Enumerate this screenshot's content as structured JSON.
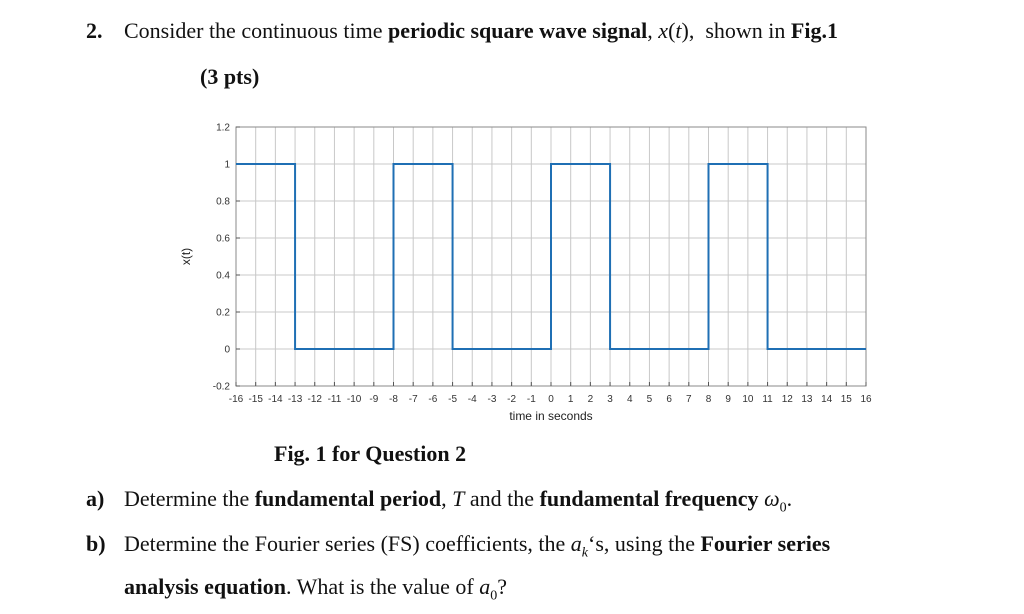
{
  "question": {
    "number": "2.",
    "text_1": "Consider the continuous time ",
    "bold_1": "periodic square wave signal",
    "text_2": ", ",
    "signal_x": "x",
    "signal_paren_open": "(",
    "signal_t": "t",
    "signal_paren_close": "),",
    "text_3": "  shown in ",
    "fig_ref": "Fig.1",
    "points": "(3 pts)"
  },
  "chart_data": {
    "type": "line",
    "xlabel": "time in seconds",
    "ylabel": "x(t)",
    "xlim": [
      -16,
      16
    ],
    "ylim": [
      -0.2,
      1.2
    ],
    "xticks": [
      -16,
      -15,
      -14,
      -13,
      -12,
      -11,
      -10,
      -9,
      -8,
      -7,
      -6,
      -5,
      -4,
      -3,
      -2,
      -1,
      0,
      1,
      2,
      3,
      4,
      5,
      6,
      7,
      8,
      9,
      10,
      11,
      12,
      13,
      14,
      15,
      16
    ],
    "yticks": [
      "1.2",
      "1",
      "0.8",
      "0.6",
      "0.4",
      "0.2",
      "0",
      "-0.2"
    ],
    "grid": true,
    "line_color": "#1f6fb4",
    "series": [
      {
        "x": [
          -16,
          -13,
          -13,
          -8,
          -8,
          -5,
          -5,
          0,
          0,
          3,
          3,
          8,
          8,
          11,
          11,
          16
        ],
        "y": [
          1,
          1,
          0,
          0,
          1,
          1,
          0,
          0,
          1,
          1,
          0,
          0,
          1,
          1,
          0,
          0
        ]
      }
    ]
  },
  "caption": "Fig. 1 for Question 2",
  "part_a": {
    "label": "a)",
    "t1": "Determine the ",
    "b1": "fundamental period",
    "t2": ", ",
    "T": "T",
    "t3": " and the ",
    "b2": "fundamental frequency",
    "omega": "ω",
    "omega_sub": "0",
    "end": "."
  },
  "part_b": {
    "label": "b)",
    "t1": "Determine the Fourier series (FS) coefficients, the ",
    "ak": "a",
    "ak_sub": "k",
    "t2": "‘s, using the ",
    "b1": "Fourier series",
    "b2": "analysis equation",
    "t3": ". What is the value of ",
    "a0": "a",
    "a0_sub": "0",
    "t4": "?"
  }
}
